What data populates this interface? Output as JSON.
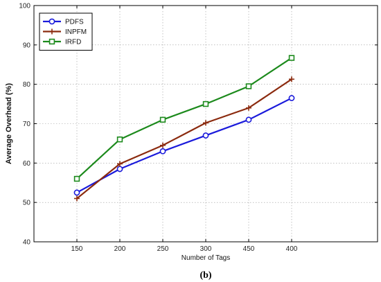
{
  "chart_data": {
    "type": "line",
    "title": "",
    "xlabel": "Number of Tags",
    "ylabel": "Average Overhead (%)",
    "categories": [
      "150",
      "200",
      "250",
      "300",
      "450",
      "400"
    ],
    "ylim": [
      40,
      100
    ],
    "yticks": [
      40,
      50,
      60,
      70,
      80,
      90,
      100
    ],
    "grid": true,
    "legend_position": "top-left",
    "series": [
      {
        "name": "PDFS",
        "color": "#1a1adb",
        "marker": "circle",
        "values": [
          52.5,
          58.5,
          63,
          67,
          71,
          76.5
        ]
      },
      {
        "name": "INPFM",
        "color": "#8b2a0e",
        "marker": "plus",
        "values": [
          51,
          59.8,
          64.5,
          70.2,
          74,
          81.3
        ]
      },
      {
        "name": "IRFD",
        "color": "#1c8a1c",
        "marker": "square",
        "values": [
          56,
          66,
          71,
          75,
          79.5,
          86.7
        ]
      }
    ],
    "caption": "(b)"
  }
}
